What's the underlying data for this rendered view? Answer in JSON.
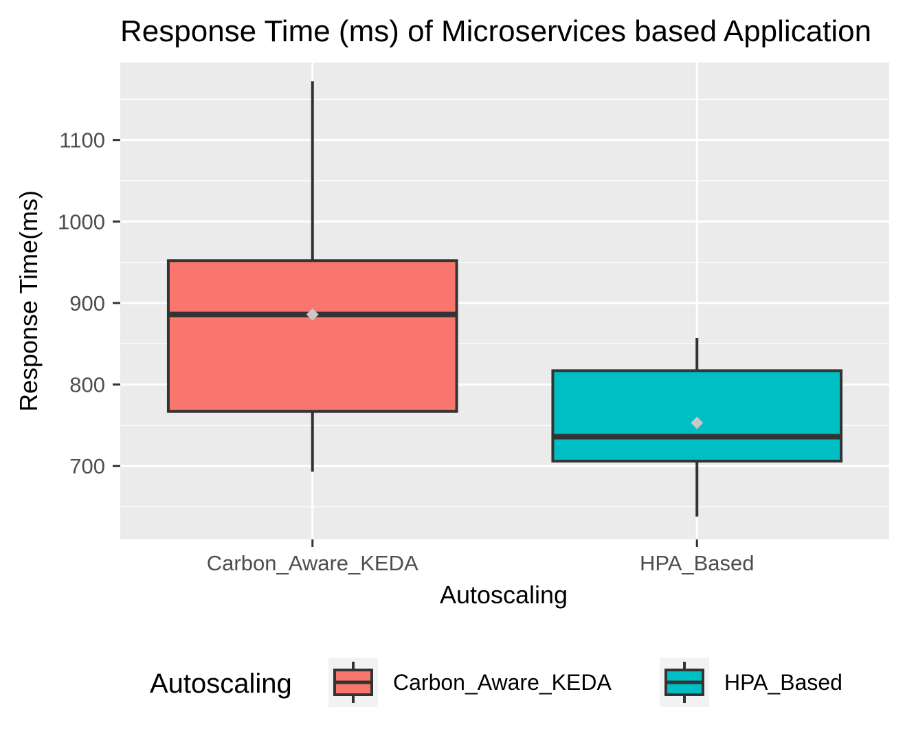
{
  "chart_data": {
    "type": "boxplot",
    "title": "Response Time (ms) of Microservices based Application",
    "xlabel": "Autoscaling",
    "ylabel": "Response Time(ms)",
    "categories": [
      "Carbon_Aware_KEDA",
      "HPA_Based"
    ],
    "ylim": [
      610,
      1195
    ],
    "y_ticks": [
      700,
      800,
      900,
      1000,
      1100
    ],
    "grid": true,
    "boxes": [
      {
        "category": "Carbon_Aware_KEDA",
        "whisker_low": 693,
        "q1": 767,
        "median": 886,
        "q3": 952,
        "whisker_high": 1172,
        "mean": 886,
        "color": "#F8766D"
      },
      {
        "category": "HPA_Based",
        "whisker_low": 638,
        "q1": 706,
        "median": 736,
        "q3": 817,
        "whisker_high": 857,
        "mean": 753,
        "color": "#00BFC4"
      }
    ],
    "legend": {
      "title": "Autoscaling",
      "position": "bottom",
      "items": [
        {
          "label": "Carbon_Aware_KEDA",
          "color": "#F8766D"
        },
        {
          "label": "HPA_Based",
          "color": "#00BFC4"
        }
      ]
    },
    "colors": {
      "panel_bg": "#EBEBEB",
      "grid": "#FFFFFF",
      "box_outline": "#333333",
      "mean_marker": "#C8C8C8",
      "legend_key_bg": "#F2F2F2"
    }
  }
}
